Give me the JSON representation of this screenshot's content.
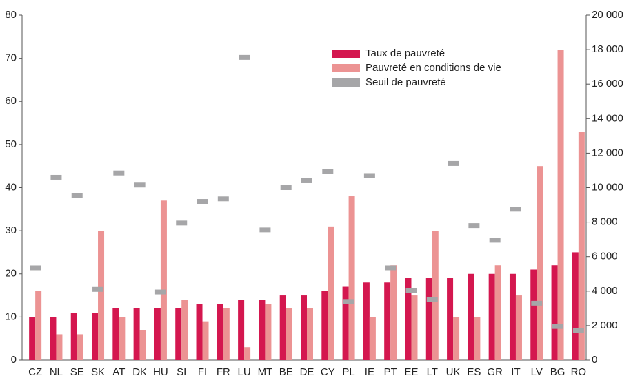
{
  "chart_data": {
    "type": "bar",
    "categories": [
      "CZ",
      "NL",
      "SE",
      "SK",
      "AT",
      "DK",
      "HU",
      "SI",
      "FI",
      "FR",
      "LU",
      "MT",
      "BE",
      "DE",
      "CY",
      "PL",
      "IE",
      "PT",
      "EE",
      "LT",
      "UK",
      "ES",
      "GR",
      "IT",
      "LV",
      "BG",
      "RO"
    ],
    "series": [
      {
        "name": "Taux de pauvreté",
        "color": "#d4174f",
        "values": [
          10,
          10,
          11,
          11,
          12,
          12,
          12,
          12,
          13,
          13,
          14,
          14,
          15,
          15,
          16,
          17,
          18,
          18,
          19,
          19,
          19,
          20,
          20,
          20,
          21,
          22,
          25
        ]
      },
      {
        "name": "Pauvreté en conditions de vie",
        "color": "#ec9393",
        "values": [
          16,
          6,
          6,
          30,
          10,
          7,
          37,
          14,
          9,
          12,
          3,
          13,
          12,
          12,
          31,
          38,
          10,
          22,
          15,
          30,
          10,
          10,
          22,
          15,
          45,
          72,
          53
        ]
      },
      {
        "name": "Seuil de pauvreté",
        "color": "#a6a6a8",
        "axis": "y2",
        "values": [
          5350,
          10600,
          9550,
          4100,
          10850,
          10150,
          3950,
          7950,
          9200,
          9350,
          17550,
          7550,
          10000,
          10400,
          10950,
          3400,
          10700,
          5350,
          4050,
          3500,
          11400,
          7800,
          6950,
          8750,
          3300,
          1950,
          1700
        ]
      }
    ],
    "ylim": [
      0,
      80
    ],
    "yticks": [
      0,
      10,
      20,
      30,
      40,
      50,
      60,
      70,
      80
    ],
    "y2lim": [
      0,
      20000
    ],
    "y2ticks": [
      0,
      {
        "value": 2000,
        "label": "2 000"
      },
      {
        "value": 4000,
        "label": "4 000"
      },
      {
        "value": 6000,
        "label": "6 000"
      },
      {
        "value": 8000,
        "label": "8 000"
      },
      {
        "value": 10000,
        "label": "10 000"
      },
      {
        "value": 12000,
        "label": "12 000"
      },
      {
        "value": 14000,
        "label": "14 000"
      },
      {
        "value": 16000,
        "label": "16 000"
      },
      {
        "value": 18000,
        "label": "18 000"
      },
      {
        "value": 20000,
        "label": "20 000"
      }
    ],
    "grid": false,
    "legend": "top-right"
  }
}
